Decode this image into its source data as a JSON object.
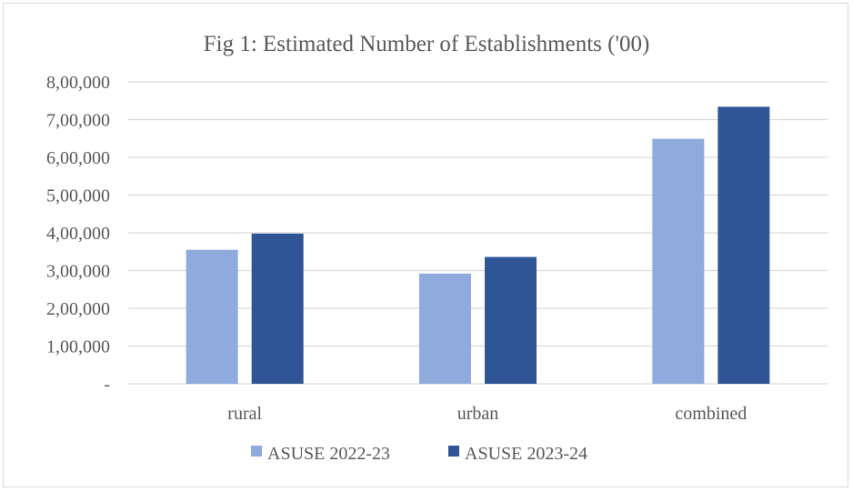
{
  "chart_data": {
    "type": "bar",
    "title": "Fig 1:  Estimated Number of Establishments ('00)",
    "categories": [
      "rural",
      "urban",
      "combined"
    ],
    "series": [
      {
        "name": "ASUSE 2022-23",
        "color": "#8faadc",
        "values": [
          355000,
          292000,
          649000
        ]
      },
      {
        "name": "ASUSE 2023-24",
        "color": "#2f5597",
        "values": [
          398000,
          336000,
          734000
        ]
      }
    ],
    "ylim": [
      0,
      800000
    ],
    "yticks": [
      0,
      100000,
      200000,
      300000,
      400000,
      500000,
      600000,
      700000,
      800000
    ],
    "ytick_labels": [
      "-",
      "1,00,000",
      "2,00,000",
      "3,00,000",
      "4,00,000",
      "5,00,000",
      "6,00,000",
      "7,00,000",
      "8,00,000"
    ],
    "grid": true,
    "legend_position": "bottom"
  }
}
